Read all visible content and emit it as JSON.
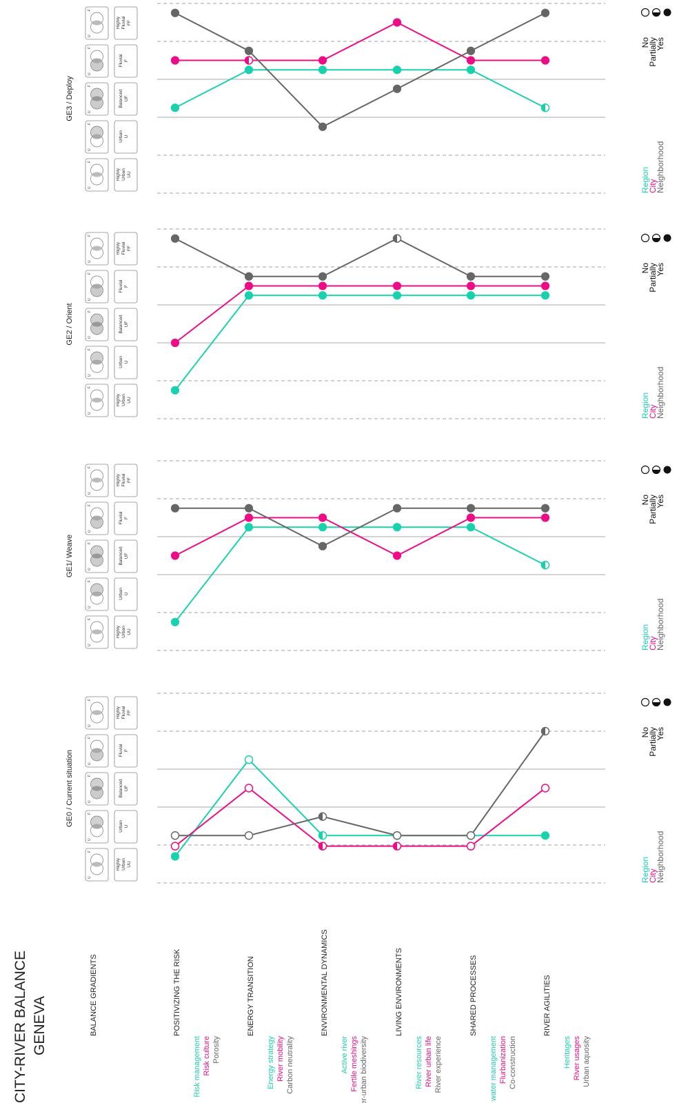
{
  "title": {
    "line1": "CITY-RIVER BALANCE",
    "line2": "GENEVA"
  },
  "gradient_header": "BALANCE GRADIENTS",
  "gradients": [
    {
      "label": "Highly Urban",
      "code": "UU"
    },
    {
      "label": "Urban",
      "code": "U"
    },
    {
      "label": "Balanced",
      "code": "UF"
    },
    {
      "label": "Fluvial",
      "code": "F"
    },
    {
      "label": "Highly Fluvial",
      "code": "FF"
    }
  ],
  "venn_letters": {
    "left": "U",
    "right": "F"
  },
  "categories": [
    {
      "title": "POSITIVIZING THE RISK",
      "items": [
        "Risk management",
        "Risk culture",
        "Porosity"
      ]
    },
    {
      "title": "ENERGY TRANSITION",
      "items": [
        "Energy strategy",
        "River mobility",
        "Carbon neutrality"
      ]
    },
    {
      "title": "ENVIRONMENTAL DYNAMICS",
      "items": [
        "Active river",
        "Fertile meshings",
        "River-urban biodiversity"
      ]
    },
    {
      "title": "LIVING ENVIRONMENTS",
      "items": [
        "River resources",
        "River urban life",
        "River experience"
      ]
    },
    {
      "title": "SHARED PROCESSES",
      "items": [
        "Integrated water management",
        "Flurbanization",
        "Co-construction"
      ]
    },
    {
      "title": "RIVER AGILITIES",
      "items": [
        "Heritages",
        "River usages",
        "Urban aquosity"
      ]
    }
  ],
  "legend": {
    "scales": [
      "Region",
      "City",
      "Neighborhood"
    ],
    "states": [
      "No",
      "Partially",
      "Yes"
    ]
  },
  "colors": {
    "region": "#1ad1ae",
    "city": "#ec0c85",
    "neighborhood": "#666666",
    "solid_grid": "#aaaaaa",
    "dashed_grid": "#a0a0a0"
  },
  "chart_data": [
    {
      "type": "line",
      "title": "GE0 / Current situation",
      "y_scale": "balance gradient 1=UU, 2=U, 3=UF, 4=F, 5=FF",
      "categories": [
        "POSITIVIZING THE RISK",
        "ENERGY TRANSITION",
        "ENVIRONMENTAL DYNAMICS",
        "LIVING ENVIRONMENTS",
        "SHARED PROCESSES",
        "RIVER AGILITIES"
      ],
      "series": [
        {
          "name": "Region",
          "values": [
            0.7,
            3.25,
            1.25,
            1.25,
            1.25,
            1.25
          ],
          "status": [
            "yes",
            "no",
            "partially",
            "partially",
            "partially",
            "yes"
          ]
        },
        {
          "name": "City",
          "values": [
            0.97,
            2.5,
            0.97,
            0.97,
            0.97,
            2.5
          ],
          "status": [
            "no",
            "no",
            "partially",
            "partially",
            "no",
            "no"
          ]
        },
        {
          "name": "Neighborhood",
          "values": [
            1.25,
            1.25,
            1.75,
            1.25,
            1.25,
            4.0
          ],
          "status": [
            "no",
            "no",
            "partially",
            "no",
            "no",
            "partially"
          ]
        }
      ]
    },
    {
      "type": "line",
      "title": "GE1/ Weave",
      "y_scale": "balance gradient 1=UU, 2=U, 3=UF, 4=F, 5=FF",
      "categories": [
        "POSITIVIZING THE RISK",
        "ENERGY TRANSITION",
        "ENVIRONMENTAL DYNAMICS",
        "LIVING ENVIRONMENTS",
        "SHARED PROCESSES",
        "RIVER AGILITIES"
      ],
      "series": [
        {
          "name": "Region",
          "values": [
            0.75,
            3.25,
            3.25,
            3.25,
            3.25,
            2.25
          ],
          "status": [
            "yes",
            "yes",
            "yes",
            "yes",
            "yes",
            "partially"
          ]
        },
        {
          "name": "City",
          "values": [
            2.5,
            3.5,
            3.5,
            2.5,
            3.5,
            3.5
          ],
          "status": [
            "yes",
            "yes",
            "yes",
            "yes",
            "yes",
            "yes"
          ]
        },
        {
          "name": "Neighborhood",
          "values": [
            3.75,
            3.75,
            2.75,
            3.75,
            3.75,
            3.75
          ],
          "status": [
            "yes",
            "yes",
            "yes",
            "yes",
            "yes",
            "yes"
          ]
        }
      ]
    },
    {
      "type": "line",
      "title": "GE2 / Orient",
      "y_scale": "balance gradient 1=UU, 2=U, 3=UF, 4=F, 5=FF",
      "categories": [
        "POSITIVIZING THE RISK",
        "ENERGY TRANSITION",
        "ENVIRONMENTAL DYNAMICS",
        "LIVING ENVIRONMENTS",
        "SHARED PROCESSES",
        "RIVER AGILITIES"
      ],
      "series": [
        {
          "name": "Region",
          "values": [
            0.75,
            3.25,
            3.25,
            3.25,
            3.25,
            3.25
          ],
          "status": [
            "yes",
            "yes",
            "yes",
            "yes",
            "yes",
            "yes"
          ]
        },
        {
          "name": "City",
          "values": [
            2.0,
            3.5,
            3.5,
            3.5,
            3.5,
            3.5
          ],
          "status": [
            "yes",
            "yes",
            "yes",
            "yes",
            "yes",
            "yes"
          ]
        },
        {
          "name": "Neighborhood",
          "values": [
            4.75,
            3.75,
            3.75,
            4.75,
            3.75,
            3.75
          ],
          "status": [
            "yes",
            "yes",
            "yes",
            "partially",
            "yes",
            "yes"
          ]
        }
      ]
    },
    {
      "type": "line",
      "title": "GE3 / Deploy",
      "y_scale": "balance gradient 1=UU, 2=U, 3=UF, 4=F, 5=FF",
      "categories": [
        "POSITIVIZING THE RISK",
        "ENERGY TRANSITION",
        "ENVIRONMENTAL DYNAMICS",
        "LIVING ENVIRONMENTS",
        "SHARED PROCESSES",
        "RIVER AGILITIES"
      ],
      "series": [
        {
          "name": "Region",
          "values": [
            2.25,
            3.25,
            3.25,
            3.25,
            3.25,
            2.25
          ],
          "status": [
            "yes",
            "yes",
            "yes",
            "yes",
            "yes",
            "partially"
          ]
        },
        {
          "name": "City",
          "values": [
            3.5,
            3.5,
            3.5,
            4.5,
            3.5,
            3.5
          ],
          "status": [
            "yes",
            "partially",
            "yes",
            "yes",
            "yes",
            "yes"
          ]
        },
        {
          "name": "Neighborhood",
          "values": [
            4.75,
            3.75,
            1.75,
            2.75,
            3.75,
            4.75
          ],
          "status": [
            "yes",
            "yes",
            "yes",
            "yes",
            "yes",
            "yes"
          ]
        }
      ]
    }
  ]
}
